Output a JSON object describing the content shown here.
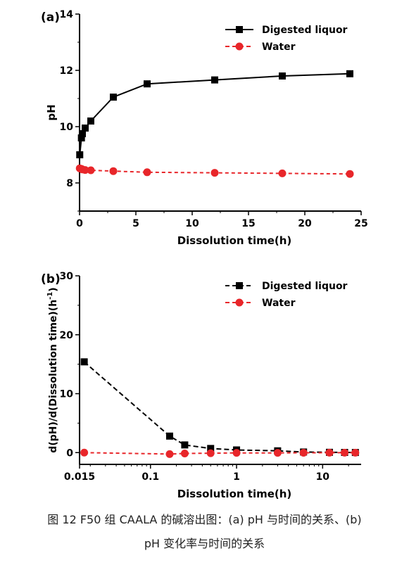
{
  "chart_data": [
    {
      "type": "line",
      "panel_label": "(a)",
      "xlabel": "Dissolution time(h)",
      "ylabel": "pH",
      "xlim": [
        0,
        25
      ],
      "ylim": [
        7,
        14
      ],
      "x_ticks": [
        "0",
        "5",
        "10",
        "15",
        "20",
        "25"
      ],
      "y_ticks": [
        "8",
        "10",
        "12",
        "14"
      ],
      "x_tick_values": [
        0,
        5,
        10,
        15,
        20,
        25
      ],
      "y_tick_values": [
        8,
        10,
        12,
        14
      ],
      "legend_position": "top-right",
      "grid": false,
      "series": [
        {
          "name": "Digested liquor",
          "color": "#000000",
          "marker": "square",
          "line": "solid",
          "x": [
            0.017,
            0.167,
            0.25,
            0.5,
            1,
            3,
            6,
            12,
            18,
            24
          ],
          "y": [
            9.0,
            9.6,
            9.75,
            9.95,
            10.2,
            11.05,
            11.52,
            11.66,
            11.8,
            11.88
          ]
        },
        {
          "name": "Water",
          "color": "#e8262a",
          "marker": "circle",
          "line": "dashed",
          "x": [
            0.017,
            0.167,
            0.25,
            0.5,
            1,
            3,
            6,
            12,
            18,
            24
          ],
          "y": [
            8.52,
            8.5,
            8.48,
            8.46,
            8.45,
            8.42,
            8.38,
            8.36,
            8.34,
            8.32
          ]
        }
      ]
    },
    {
      "type": "line",
      "panel_label": "(b)",
      "xlabel": "Dissolution time(h)",
      "ylabel": "d(pH)/d(Dissolution time)(h",
      "ylabel_sup": "-1",
      "ylabel_end": ")",
      "xscale": "log",
      "xlim": [
        0.015,
        28
      ],
      "ylim": [
        -2,
        30
      ],
      "x_ticks": [
        "0.015",
        "0.1",
        "1",
        "10"
      ],
      "y_ticks": [
        "0",
        "10",
        "20",
        "30"
      ],
      "x_tick_values": [
        0.015,
        0.1,
        1,
        10
      ],
      "y_tick_values": [
        0,
        10,
        20,
        30
      ],
      "legend_position": "top-right",
      "grid": false,
      "series": [
        {
          "name": "Digested liquor",
          "color": "#000000",
          "marker": "square",
          "line": "dashed",
          "x": [
            0.017,
            0.167,
            0.25,
            0.5,
            1,
            3,
            6,
            12,
            18,
            24
          ],
          "y": [
            15.4,
            2.8,
            1.3,
            0.7,
            0.45,
            0.3,
            0.1,
            0.05,
            0.03,
            0.02
          ]
        },
        {
          "name": "Water",
          "color": "#e8262a",
          "marker": "circle",
          "line": "dashed",
          "x": [
            0.017,
            0.167,
            0.25,
            0.5,
            1,
            3,
            6,
            12,
            18,
            24
          ],
          "y": [
            0.0,
            -0.25,
            -0.15,
            -0.1,
            -0.05,
            -0.05,
            -0.03,
            -0.02,
            -0.02,
            -0.01
          ]
        }
      ]
    }
  ],
  "caption": {
    "line1": "图 12   F50 组 CAALA 的碱溶出图：(a) pH 与时间的关系、(b)",
    "line2": "pH 变化率与时间的关系"
  }
}
